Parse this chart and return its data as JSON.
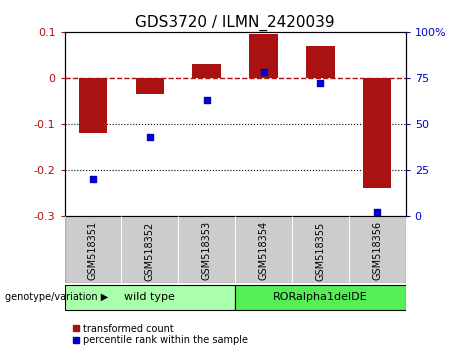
{
  "title": "GDS3720 / ILMN_2420039",
  "categories": [
    "GSM518351",
    "GSM518352",
    "GSM518353",
    "GSM518354",
    "GSM518355",
    "GSM518356"
  ],
  "red_values": [
    -0.12,
    -0.035,
    0.03,
    0.095,
    0.07,
    -0.24
  ],
  "blue_percentiles": [
    20,
    43,
    63,
    78,
    72,
    2
  ],
  "ylim_left": [
    -0.3,
    0.1
  ],
  "ylim_right": [
    0,
    100
  ],
  "left_ticks": [
    -0.3,
    -0.2,
    -0.1,
    0.0,
    0.1
  ],
  "right_ticks": [
    0,
    25,
    50,
    75,
    100
  ],
  "right_tick_labels": [
    "0",
    "25",
    "50",
    "75",
    "100%"
  ],
  "left_tick_labels": [
    "-0.3",
    "-0.2",
    "-0.1",
    "0",
    "0.1"
  ],
  "dotted_lines": [
    -0.1,
    -0.2
  ],
  "bar_color": "#aa1111",
  "dot_color": "#0000cc",
  "bar_width": 0.5,
  "group1_label": "wild type",
  "group2_label": "RORalpha1delDE",
  "group_color1": "#aaffaa",
  "group_color2": "#55ee55",
  "sample_bg": "#cccccc",
  "xlabel_area": "genotype/variation",
  "legend_red": "transformed count",
  "legend_blue": "percentile rank within the sample",
  "title_fontsize": 11,
  "tick_fontsize": 8,
  "sample_fontsize": 7,
  "group_fontsize": 8,
  "legend_fontsize": 7
}
